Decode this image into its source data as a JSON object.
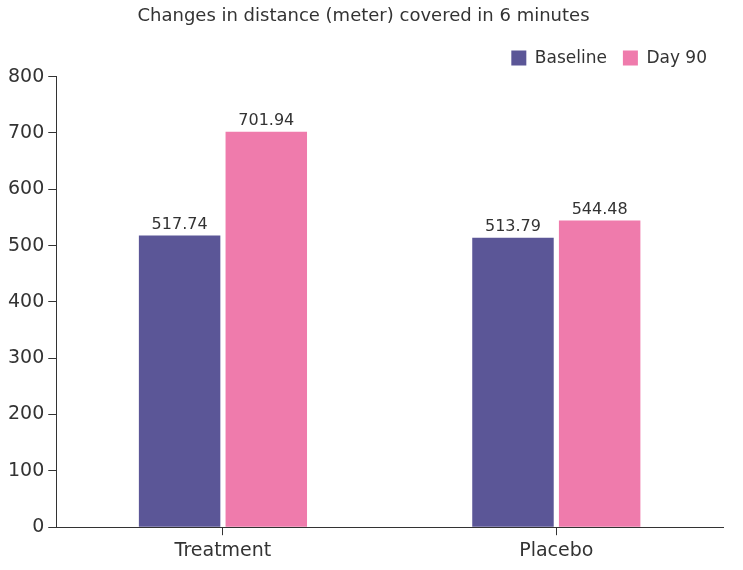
{
  "chart_data": {
    "type": "bar",
    "title": "Changes in distance (meter) covered in 6 minutes",
    "categories": [
      "Treatment",
      "Placebo"
    ],
    "series": [
      {
        "name": "Baseline",
        "color": "#5b5697",
        "values": [
          517.74,
          513.79
        ]
      },
      {
        "name": "Day 90",
        "color": "#ef7bac",
        "values": [
          701.94,
          544.48
        ]
      }
    ],
    "ylim": [
      0,
      800
    ],
    "yticks": [
      0,
      100,
      200,
      300,
      400,
      500,
      600,
      700,
      800
    ],
    "grid": false,
    "legend": "top-right",
    "data_labels": true
  }
}
